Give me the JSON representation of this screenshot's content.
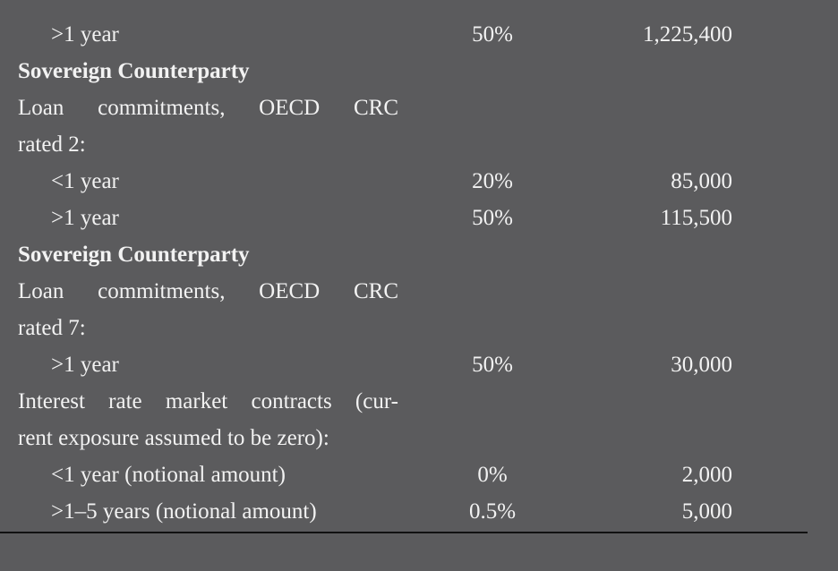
{
  "table": {
    "rows": [
      {
        "label": [
          ">1 year"
        ],
        "rate": "50%",
        "amount": "1,225,400"
      },
      {
        "heading": "Sovereign Counterparty"
      },
      {
        "label": [
          "Loan commitments, OECD CRC",
          "rated 2:"
        ]
      },
      {
        "label": [
          "<1 year"
        ],
        "rate": "20%",
        "amount": "85,000"
      },
      {
        "label": [
          ">1 year"
        ],
        "rate": "50%",
        "amount": "115,500"
      },
      {
        "heading": "Sovereign Counterparty"
      },
      {
        "label": [
          "Loan commitments, OECD CRC",
          "rated 7:"
        ]
      },
      {
        "label": [
          ">1 year"
        ],
        "rate": "50%",
        "amount": "30,000"
      },
      {
        "label": [
          "Interest rate market contracts (cur-",
          "rent exposure assumed to be zero):"
        ]
      },
      {
        "label": [
          "<1 year (notional amount)"
        ],
        "rate": "0%",
        "amount": "2,000"
      },
      {
        "label": [
          ">1–5 years (notional amount)"
        ],
        "rate": "0.5%",
        "amount": "5,000"
      }
    ]
  }
}
